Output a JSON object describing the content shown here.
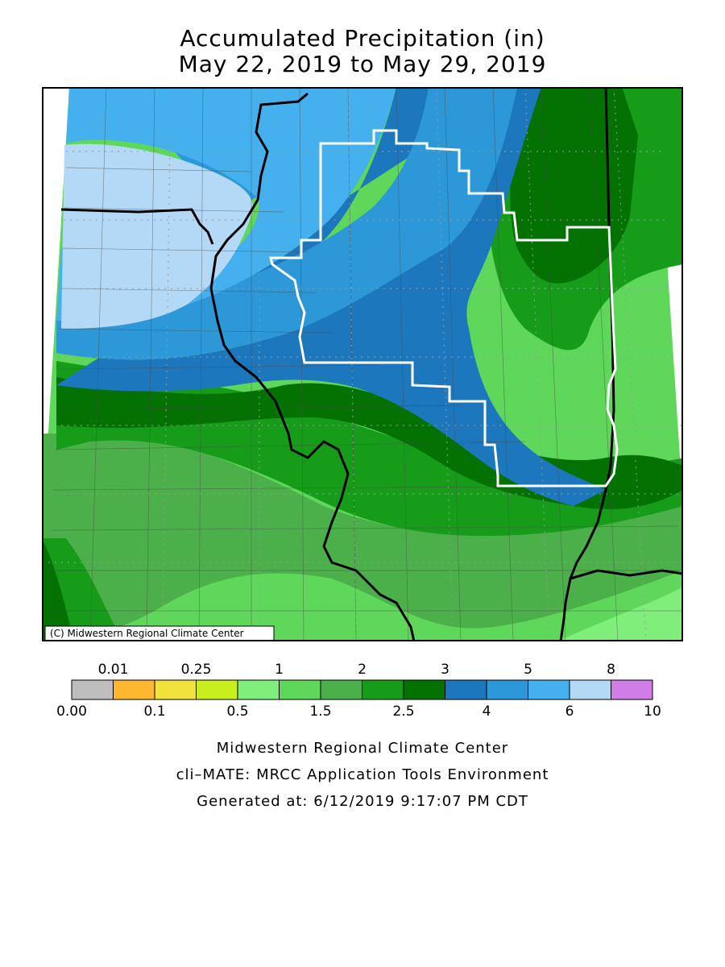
{
  "title": {
    "line1": "Accumulated Precipitation (in)",
    "line2": "May 22, 2019 to May 29, 2019"
  },
  "map": {
    "copyright": "(C) Midwestern Regional Climate Center",
    "colors": {
      "water_line": "#000000",
      "region_outline": "#ffffff",
      "county_lines": "#555555"
    }
  },
  "legend": {
    "top_labels": [
      "0.01",
      "0.25",
      "1",
      "2",
      "3",
      "5",
      "8"
    ],
    "bottom_labels": [
      "0.00",
      "0.1",
      "0.5",
      "1.5",
      "2.5",
      "4",
      "6",
      "10"
    ],
    "bins": [
      {
        "from": "0.00",
        "to": "0.01",
        "color": "#bebebe"
      },
      {
        "from": "0.01",
        "to": "0.1",
        "color": "#ffb631"
      },
      {
        "from": "0.1",
        "to": "0.25",
        "color": "#f2e23c"
      },
      {
        "from": "0.25",
        "to": "0.5",
        "color": "#c8ee1e"
      },
      {
        "from": "0.5",
        "to": "1",
        "color": "#7fee7a"
      },
      {
        "from": "1",
        "to": "1.5",
        "color": "#5ed75a"
      },
      {
        "from": "1.5",
        "to": "2",
        "color": "#4cb04a"
      },
      {
        "from": "2",
        "to": "2.5",
        "color": "#169c19"
      },
      {
        "from": "2.5",
        "to": "3",
        "color": "#037203"
      },
      {
        "from": "3",
        "to": "4",
        "color": "#1c77bc"
      },
      {
        "from": "4",
        "to": "5",
        "color": "#2c98d8"
      },
      {
        "from": "5",
        "to": "6",
        "color": "#44b0ed"
      },
      {
        "from": "6",
        "to": "8",
        "color": "#b4d9f7"
      },
      {
        "from": "8",
        "to": "10",
        "color": "#d17de8"
      }
    ]
  },
  "footer": {
    "line1": "Midwestern Regional Climate Center",
    "line2": "cli–MATE: MRCC Application Tools Environment",
    "line3": "Generated at: 6/12/2019 9:17:07 PM CDT"
  }
}
